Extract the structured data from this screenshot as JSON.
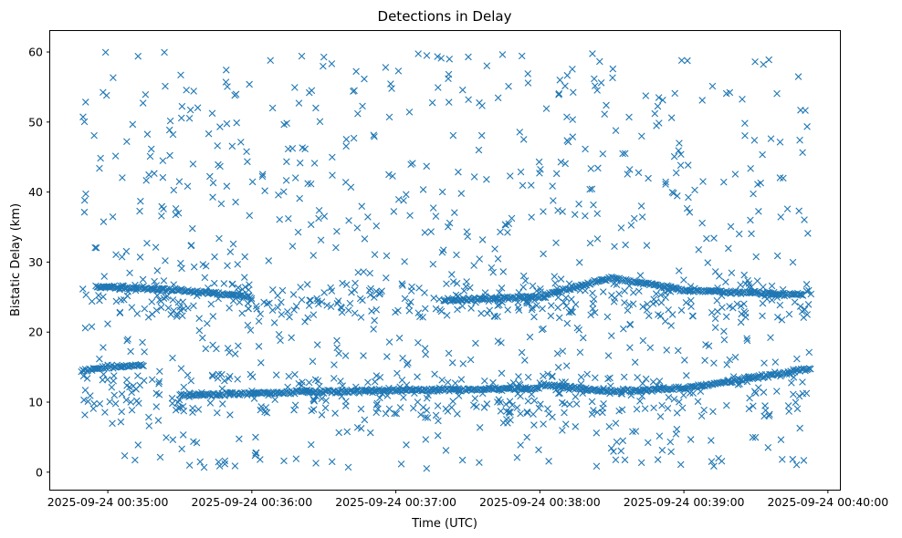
{
  "chart_data": {
    "type": "scatter",
    "title": "Detections in Delay",
    "xlabel": "Time (UTC)",
    "ylabel": "Bistatic Delay (km)",
    "marker": "x",
    "color": "#1f77b4",
    "grid": false,
    "legend": "none",
    "xlim": [
      "2025-09-24 00:34:36",
      "2025-09-24 00:40:05"
    ],
    "ylim": [
      -2.5,
      63
    ],
    "x_ticks": [
      "2025-09-24 00:35:00",
      "2025-09-24 00:36:00",
      "2025-09-24 00:37:00",
      "2025-09-24 00:38:00",
      "2025-09-24 00:39:00",
      "2025-09-24 00:40:00"
    ],
    "y_ticks": [
      0,
      10,
      20,
      30,
      40,
      50,
      60
    ],
    "data_range": {
      "x": [
        "2025-09-24 00:34:49",
        "2025-09-24 00:39:53"
      ],
      "y": [
        0.5,
        60
      ]
    },
    "tracks": [
      {
        "x": [
          "2025-09-24 00:34:49",
          "2025-09-24 00:35:00",
          "2025-09-24 00:35:15"
        ],
        "y": [
          14.5,
          15.0,
          15.3
        ]
      },
      {
        "x": [
          "2025-09-24 00:35:30",
          "2025-09-24 00:36:30",
          "2025-09-24 00:37:30",
          "2025-09-24 00:38:00"
        ],
        "y": [
          11.0,
          11.5,
          11.8,
          12.0
        ]
      },
      {
        "x": [
          "2025-09-24 00:38:00",
          "2025-09-24 00:38:30",
          "2025-09-24 00:39:00",
          "2025-09-24 00:39:53"
        ],
        "y": [
          12.5,
          11.5,
          12.0,
          14.8
        ]
      },
      {
        "x": [
          "2025-09-24 00:34:55",
          "2025-09-24 00:35:30",
          "2025-09-24 00:36:00"
        ],
        "y": [
          26.5,
          26.0,
          25.0
        ]
      },
      {
        "x": [
          "2025-09-24 00:37:20",
          "2025-09-24 00:38:00",
          "2025-09-24 00:38:30",
          "2025-09-24 00:39:00",
          "2025-09-24 00:39:50"
        ],
        "y": [
          24.5,
          25.0,
          27.8,
          26.0,
          25.3
        ]
      }
    ]
  }
}
